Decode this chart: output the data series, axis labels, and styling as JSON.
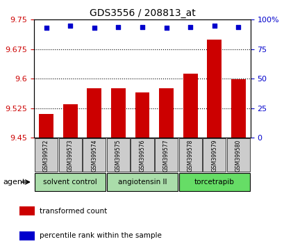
{
  "title": "GDS3556 / 208813_at",
  "samples": [
    "GSM399572",
    "GSM399573",
    "GSM399574",
    "GSM399575",
    "GSM399576",
    "GSM399577",
    "GSM399578",
    "GSM399579",
    "GSM399580"
  ],
  "bar_values": [
    9.51,
    9.535,
    9.575,
    9.575,
    9.565,
    9.575,
    9.612,
    9.7,
    9.598
  ],
  "percentile_values": [
    93,
    95,
    93,
    94,
    94,
    93,
    94,
    95,
    94
  ],
  "ylim_left": [
    9.45,
    9.75
  ],
  "ylim_right": [
    0,
    100
  ],
  "yticks_left": [
    9.45,
    9.525,
    9.6,
    9.675,
    9.75
  ],
  "yticks_right": [
    0,
    25,
    50,
    75,
    100
  ],
  "ytick_labels_left": [
    "9.45",
    "9.525",
    "9.6",
    "9.675",
    "9.75"
  ],
  "ytick_labels_right": [
    "0",
    "25",
    "50",
    "75",
    "100%"
  ],
  "groups": [
    {
      "label": "solvent control",
      "samples": [
        "GSM399572",
        "GSM399573",
        "GSM399574"
      ],
      "color": "#aaddaa"
    },
    {
      "label": "angiotensin II",
      "samples": [
        "GSM399575",
        "GSM399576",
        "GSM399577"
      ],
      "color": "#aaddaa"
    },
    {
      "label": "torcetrapib",
      "samples": [
        "GSM399578",
        "GSM399579",
        "GSM399580"
      ],
      "color": "#66dd66"
    }
  ],
  "bar_color": "#cc0000",
  "percentile_color": "#0000cc",
  "bg_color": "#ffffff",
  "grid_color": "#000000",
  "agent_label": "agent",
  "legend_items": [
    {
      "label": "transformed count",
      "color": "#cc0000"
    },
    {
      "label": "percentile rank within the sample",
      "color": "#0000cc"
    }
  ],
  "sample_bg_color": "#cccccc",
  "group_colors": [
    "#aaddaa",
    "#aaddaa",
    "#66dd66"
  ]
}
